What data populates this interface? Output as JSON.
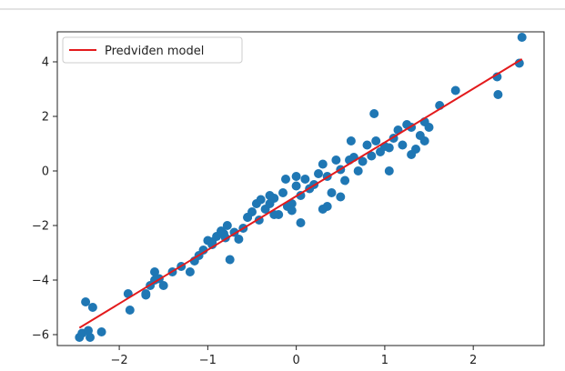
{
  "chart_data": {
    "type": "scatter",
    "title": "",
    "xlabel": "",
    "ylabel": "",
    "xlim": [
      -2.7,
      2.8
    ],
    "ylim": [
      -6.4,
      5.1
    ],
    "xticks": [
      -2,
      -1,
      0,
      1,
      2
    ],
    "yticks": [
      -6,
      -4,
      -2,
      0,
      2,
      4
    ],
    "xtick_labels": [
      "−2",
      "−1",
      "0",
      "1",
      "2"
    ],
    "ytick_labels": [
      "−6",
      "−4",
      "−2",
      "0",
      "2",
      "4"
    ],
    "grid": false,
    "legend_position": "top-left",
    "series": [
      {
        "name": "",
        "kind": "scatter",
        "color": "#1f77b4",
        "x": [
          -2.45,
          -2.38,
          -2.33,
          -2.42,
          -2.35,
          -2.2,
          -1.9,
          -1.88,
          -1.7,
          -1.65,
          -1.6,
          -1.55,
          -1.5,
          -1.4,
          -1.2,
          -1.15,
          -1.1,
          -1.05,
          -1.0,
          -0.95,
          -0.9,
          -0.85,
          -0.82,
          -0.78,
          -0.7,
          -0.65,
          -0.6,
          -0.55,
          -0.5,
          -0.45,
          -0.42,
          -0.4,
          -0.35,
          -0.3,
          -0.25,
          -0.2,
          -0.15,
          -0.12,
          -0.1,
          -0.05,
          0.0,
          0.05,
          0.1,
          0.15,
          0.2,
          0.25,
          0.3,
          0.35,
          0.4,
          0.45,
          0.5,
          0.55,
          0.6,
          0.65,
          0.7,
          0.75,
          0.8,
          0.85,
          0.9,
          0.95,
          1.0,
          1.05,
          1.1,
          1.15,
          1.2,
          1.25,
          1.3,
          1.35,
          1.4,
          1.45,
          1.5,
          0.88,
          1.05,
          1.62,
          1.8,
          2.27,
          2.28,
          2.52,
          2.55,
          -0.55,
          -0.25,
          0.05,
          0.35,
          -1.7,
          -0.75,
          -0.05,
          0.5,
          1.3,
          -1.6,
          -0.95,
          0.0,
          0.62,
          1.45,
          -2.3,
          -1.3,
          -0.8,
          -0.3,
          0.3
        ],
        "y": [
          -6.1,
          -4.8,
          -6.1,
          -5.95,
          -5.85,
          -5.9,
          -4.5,
          -5.1,
          -4.5,
          -4.2,
          -3.7,
          -3.95,
          -4.2,
          -3.7,
          -3.7,
          -3.3,
          -3.1,
          -2.9,
          -2.55,
          -2.6,
          -2.4,
          -2.2,
          -2.3,
          -2.0,
          -2.25,
          -2.5,
          -2.1,
          -1.7,
          -1.5,
          -1.2,
          -1.8,
          -1.05,
          -1.4,
          -0.9,
          -1.0,
          -1.6,
          -0.8,
          -0.3,
          -1.3,
          -1.2,
          -0.55,
          -0.9,
          -0.3,
          -0.65,
          -0.5,
          -0.1,
          0.25,
          -0.2,
          -0.8,
          0.4,
          -0.95,
          -0.35,
          0.4,
          0.5,
          0.0,
          0.35,
          0.95,
          0.55,
          1.1,
          0.7,
          0.9,
          0.85,
          1.2,
          1.5,
          0.95,
          1.7,
          1.6,
          0.8,
          1.3,
          1.8,
          1.6,
          2.1,
          0.0,
          2.4,
          2.95,
          3.45,
          2.8,
          3.95,
          4.9,
          -1.7,
          -1.6,
          -1.9,
          -1.3,
          -4.55,
          -3.25,
          -1.45,
          0.05,
          0.6,
          -4.0,
          -2.7,
          -0.2,
          1.1,
          1.1,
          -5.0,
          -3.5,
          -2.45,
          -1.2,
          -1.4
        ]
      },
      {
        "name": "Predviđen model",
        "kind": "line",
        "color": "#e31a1c",
        "x": [
          -2.45,
          2.55
        ],
        "y": [
          -5.75,
          4.1
        ]
      }
    ]
  }
}
